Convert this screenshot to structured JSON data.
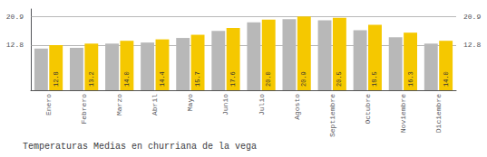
{
  "chart_data": {
    "type": "bar",
    "title": "Temperaturas Medias en churriana de la vega",
    "categories": [
      "Enero",
      "Febrero",
      "Marzo",
      "Abril",
      "Mayo",
      "Junio",
      "Julio",
      "Agosto",
      "Septiembre",
      "Octubre",
      "Noviembre",
      "Diciembre"
    ],
    "series": [
      {
        "color": "#B8B8B8",
        "values": [
          11.8,
          12.0,
          13.2,
          13.5,
          14.8,
          16.8,
          19.2,
          20.1,
          19.8,
          17.0,
          15.0,
          13.2
        ]
      },
      {
        "color": "#F5C800",
        "values": [
          12.8,
          13.2,
          14.0,
          14.4,
          15.7,
          17.6,
          20.0,
          20.9,
          20.5,
          18.5,
          16.3,
          14.0
        ],
        "value_labels": [
          "12.8",
          "13.2",
          "14.0",
          "14.4",
          "15.7",
          "17.6",
          "20.0",
          "20.9",
          "20.5",
          "18.5",
          "16.3",
          "14.0"
        ],
        "data_labels": true
      }
    ],
    "ylim": [
      0,
      22.99
    ],
    "yticks": [
      12.8,
      20.9
    ],
    "y2lim": [
      0,
      22.99
    ],
    "y2ticks": [
      12.8,
      20.9
    ],
    "grid": true
  }
}
